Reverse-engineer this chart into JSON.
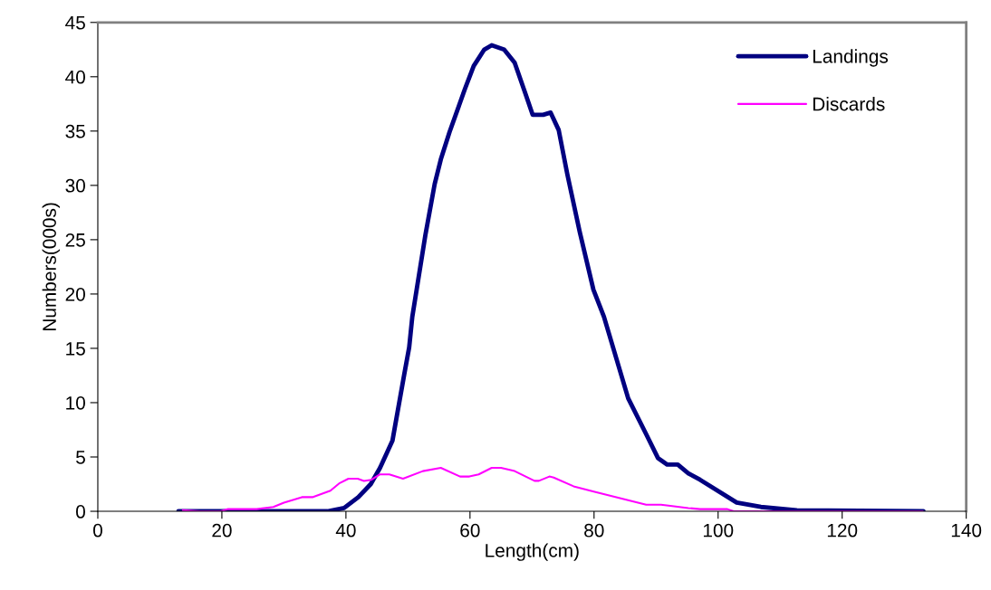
{
  "chart_data": {
    "type": "line",
    "xlabel": "Length(cm)",
    "ylabel": "Numbers(000s)",
    "xlim": [
      0,
      140
    ],
    "xticks": [
      0,
      20,
      40,
      60,
      80,
      100,
      120,
      140
    ],
    "ylim": [
      0,
      45
    ],
    "yticks": [
      0,
      5,
      10,
      15,
      20,
      25,
      30,
      35,
      40,
      45
    ],
    "grid": false,
    "legend": "top right",
    "marker": "none",
    "line_style": "solid",
    "series": [
      {
        "name": "Landings",
        "color": "#000080",
        "x": [
          13,
          20,
          30,
          37,
          39.7,
          42,
          44,
          45.5,
          47.5,
          49.4,
          50.2,
          50.7,
          51.4,
          52.8,
          54.3,
          55.3,
          56.7,
          59.2,
          60.6,
          61.4,
          62.3,
          63.5,
          65.5,
          67.2,
          68.9,
          70.1,
          71.8,
          73.0,
          74.3,
          75.7,
          77.7,
          79.9,
          81.6,
          85.5,
          88.4,
          90.3,
          91.8,
          93.5,
          95.2,
          97.1,
          103,
          106.9,
          112.7,
          133.1
        ],
        "values": [
          0,
          0,
          0,
          0,
          0.3,
          1.3,
          2.5,
          4.0,
          6.5,
          12.6,
          15.1,
          17.9,
          20.4,
          25.4,
          30.1,
          32.4,
          34.9,
          38.9,
          41,
          41.7,
          42.5,
          42.9,
          42.5,
          41.3,
          38.5,
          36.5,
          36.5,
          36.7,
          35.1,
          31,
          25.7,
          20.4,
          17.9,
          10.4,
          7.1,
          4.9,
          4.3,
          4.3,
          3.5,
          2.9,
          0.8,
          0.4,
          0.1,
          0
        ]
      },
      {
        "name": "Discards",
        "color": "#ff00ff",
        "x": [
          13.7,
          16.4,
          19.8,
          21,
          25.6,
          28.3,
          30,
          32.9,
          34.6,
          37.5,
          39,
          40.4,
          41.9,
          42.9,
          44.1,
          45.5,
          47,
          49.2,
          52.4,
          55.3,
          58.4,
          59.9,
          61.4,
          63.5,
          65,
          67.2,
          70.4,
          71.1,
          72.8,
          73.5,
          76.7,
          80.1,
          88.4,
          90.8,
          92.3,
          95.2,
          97.1,
          101.5,
          102.5,
          133
        ],
        "values": [
          0.1,
          0,
          0,
          0.2,
          0.2,
          0.4,
          0.8,
          1.3,
          1.3,
          1.9,
          2.6,
          3.0,
          3.0,
          2.8,
          2.9,
          3.4,
          3.4,
          3.0,
          3.7,
          4.0,
          3.2,
          3.2,
          3.4,
          4.0,
          4.0,
          3.7,
          2.8,
          2.8,
          3.2,
          3.1,
          2.3,
          1.8,
          0.6,
          0.6,
          0.5,
          0.3,
          0.2,
          0.2,
          0,
          0
        ]
      }
    ]
  }
}
